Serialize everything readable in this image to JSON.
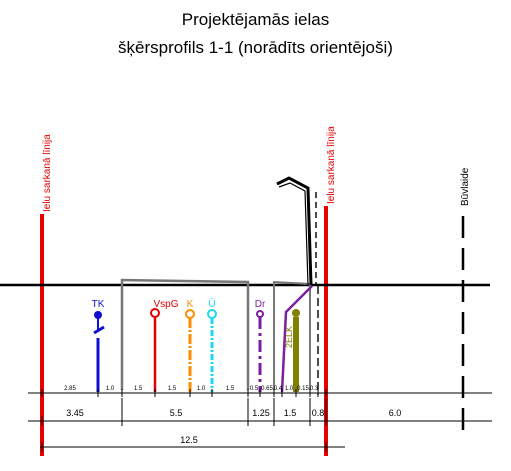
{
  "title": {
    "line1": "Projektējamās ielas",
    "line2": "šķērsprofils 1-1 (norādīts orientējoši)"
  },
  "vertical_labels": {
    "red_line_left": "Ielu sarkanā līnija",
    "red_line_right": "Ielu sarkanā līnija",
    "build_line": "Būvlaide"
  },
  "utilities": [
    {
      "code": "TK",
      "color": "#1010d0"
    },
    {
      "code": "VspG",
      "color": "#e00000"
    },
    {
      "code": "K",
      "color": "#ff8c00"
    },
    {
      "code": "Ū",
      "color": "#22d5f0"
    },
    {
      "code": "Dr",
      "color": "#7b1fa2"
    },
    {
      "code": "2ELK",
      "color": "#7f7f00"
    }
  ],
  "dimensions_row1": [
    "2.85",
    "1.0",
    "1.5",
    "1.5",
    "1.0",
    "1.5",
    "0.5",
    "0.65",
    "0.4",
    "1.0",
    "0.15",
    "0.3"
  ],
  "dimensions_row2": [
    "3.45",
    "5.5",
    "1.25",
    "1.5",
    "0.8",
    "6.0"
  ],
  "dimensions_row3": [
    "12.5"
  ],
  "colors": {
    "red_line": "#e60000",
    "ground": "#000000",
    "road_outline": "#777777",
    "dimension_line": "#000000"
  }
}
